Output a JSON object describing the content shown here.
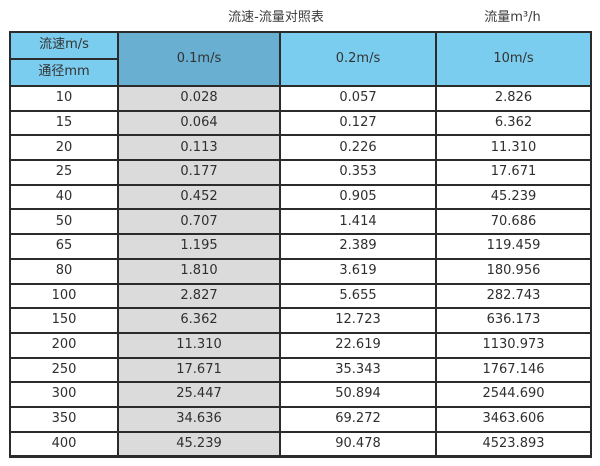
{
  "page": {
    "title": "流速-流量对照表",
    "unit_label": "流量m³/h"
  },
  "colors": {
    "header_light_blue": "#7bcdef",
    "header_dark_blue": "#68afd1",
    "first_column_gray": "#dbdbdb",
    "grid_border": "#2b2b2b",
    "text": "#333333"
  },
  "table": {
    "corner_top_label": "流速m/s",
    "corner_bottom_label": "通径mm",
    "velocity_headers": [
      "0.1m/s",
      "0.2m/s",
      "10m/s"
    ],
    "rows": [
      {
        "diameter": "10",
        "values": [
          "0.028",
          "0.057",
          "2.826"
        ]
      },
      {
        "diameter": "15",
        "values": [
          "0.064",
          "0.127",
          "6.362"
        ]
      },
      {
        "diameter": "20",
        "values": [
          "0.113",
          "0.226",
          "11.310"
        ]
      },
      {
        "diameter": "25",
        "values": [
          "0.177",
          "0.353",
          "17.671"
        ]
      },
      {
        "diameter": "40",
        "values": [
          "0.452",
          "0.905",
          "45.239"
        ]
      },
      {
        "diameter": "50",
        "values": [
          "0.707",
          "1.414",
          "70.686"
        ]
      },
      {
        "diameter": "65",
        "values": [
          "1.195",
          "2.389",
          "119.459"
        ]
      },
      {
        "diameter": "80",
        "values": [
          "1.810",
          "3.619",
          "180.956"
        ]
      },
      {
        "diameter": "100",
        "values": [
          "2.827",
          "5.655",
          "282.743"
        ]
      },
      {
        "diameter": "150",
        "values": [
          "6.362",
          "12.723",
          "636.173"
        ]
      },
      {
        "diameter": "200",
        "values": [
          "11.310",
          "22.619",
          "1130.973"
        ]
      },
      {
        "diameter": "250",
        "values": [
          "17.671",
          "35.343",
          "1767.146"
        ]
      },
      {
        "diameter": "300",
        "values": [
          "25.447",
          "50.894",
          "2544.690"
        ]
      },
      {
        "diameter": "350",
        "values": [
          "34.636",
          "69.272",
          "3463.606"
        ]
      },
      {
        "diameter": "400",
        "values": [
          "45.239",
          "90.478",
          "4523.893"
        ]
      }
    ]
  },
  "chart_data": {
    "type": "table",
    "title": "流速-流量对照表",
    "value_unit": "流量m³/h",
    "row_header": "通径mm",
    "column_header": "流速m/s",
    "columns": [
      "0.1m/s",
      "0.2m/s",
      "10m/s"
    ],
    "diameters_mm": [
      10,
      15,
      20,
      25,
      40,
      50,
      65,
      80,
      100,
      150,
      200,
      250,
      300,
      350,
      400
    ],
    "series": [
      {
        "name": "0.1m/s",
        "values": [
          0.028,
          0.064,
          0.113,
          0.177,
          0.452,
          0.707,
          1.195,
          1.81,
          2.827,
          6.362,
          11.31,
          17.671,
          25.447,
          34.636,
          45.239
        ]
      },
      {
        "name": "0.2m/s",
        "values": [
          0.057,
          0.127,
          0.226,
          0.353,
          0.905,
          1.414,
          2.389,
          3.619,
          5.655,
          12.723,
          22.619,
          35.343,
          50.894,
          69.272,
          90.478
        ]
      },
      {
        "name": "10m/s",
        "values": [
          2.826,
          6.362,
          11.31,
          17.671,
          45.239,
          70.686,
          119.459,
          180.956,
          282.743,
          636.173,
          1130.973,
          1767.146,
          2544.69,
          3463.606,
          4523.893
        ]
      }
    ]
  }
}
